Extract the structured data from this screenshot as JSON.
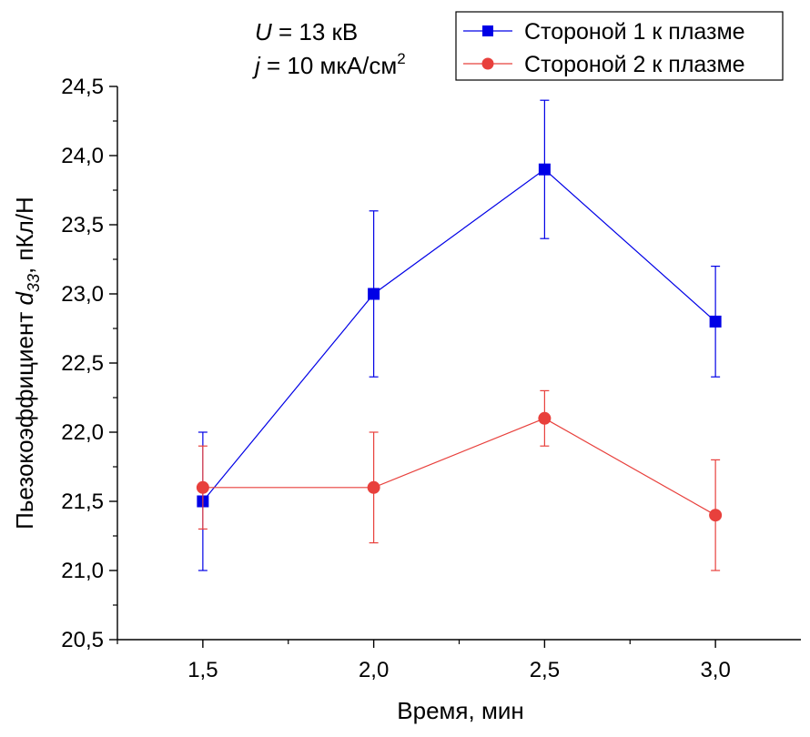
{
  "chart_data": {
    "type": "line",
    "x": [
      1.5,
      2.0,
      2.5,
      3.0
    ],
    "x_tick_labels": [
      "1,5",
      "2,0",
      "2,5",
      "3,0"
    ],
    "xlim": [
      1.25,
      3.25
    ],
    "ylim": [
      20.5,
      24.5
    ],
    "y_ticks": [
      20.5,
      21.0,
      21.5,
      22.0,
      22.5,
      23.0,
      23.5,
      24.0,
      24.5
    ],
    "y_tick_labels": [
      "20,5",
      "21,0",
      "21,5",
      "22,0",
      "22,5",
      "23,0",
      "23,5",
      "24,0",
      "24,5"
    ],
    "xlabel": "Время, мин",
    "ylabel": {
      "prefix": "Пьезокоэффициент ",
      "symbol": "d",
      "subscript": "33",
      "suffix": ", пКл/Н"
    },
    "annotations": [
      {
        "symbol": "U",
        "text": " = 13 кВ"
      },
      {
        "symbol": "j",
        "text": " = 10 мкА/см",
        "superscript": "2"
      }
    ],
    "legend_position": "top-right",
    "grid": false,
    "series": [
      {
        "name": "Стороной 1 к плазме",
        "marker": "square",
        "color": "#0000e6",
        "values": [
          21.5,
          23.0,
          23.9,
          22.8
        ],
        "errors": [
          0.5,
          0.6,
          0.5,
          0.4
        ]
      },
      {
        "name": "Стороной 2 к плазме",
        "marker": "circle",
        "color": "#e8403c",
        "values": [
          21.6,
          21.6,
          22.1,
          21.4
        ],
        "errors": [
          0.3,
          0.4,
          0.2,
          0.4
        ]
      }
    ]
  }
}
